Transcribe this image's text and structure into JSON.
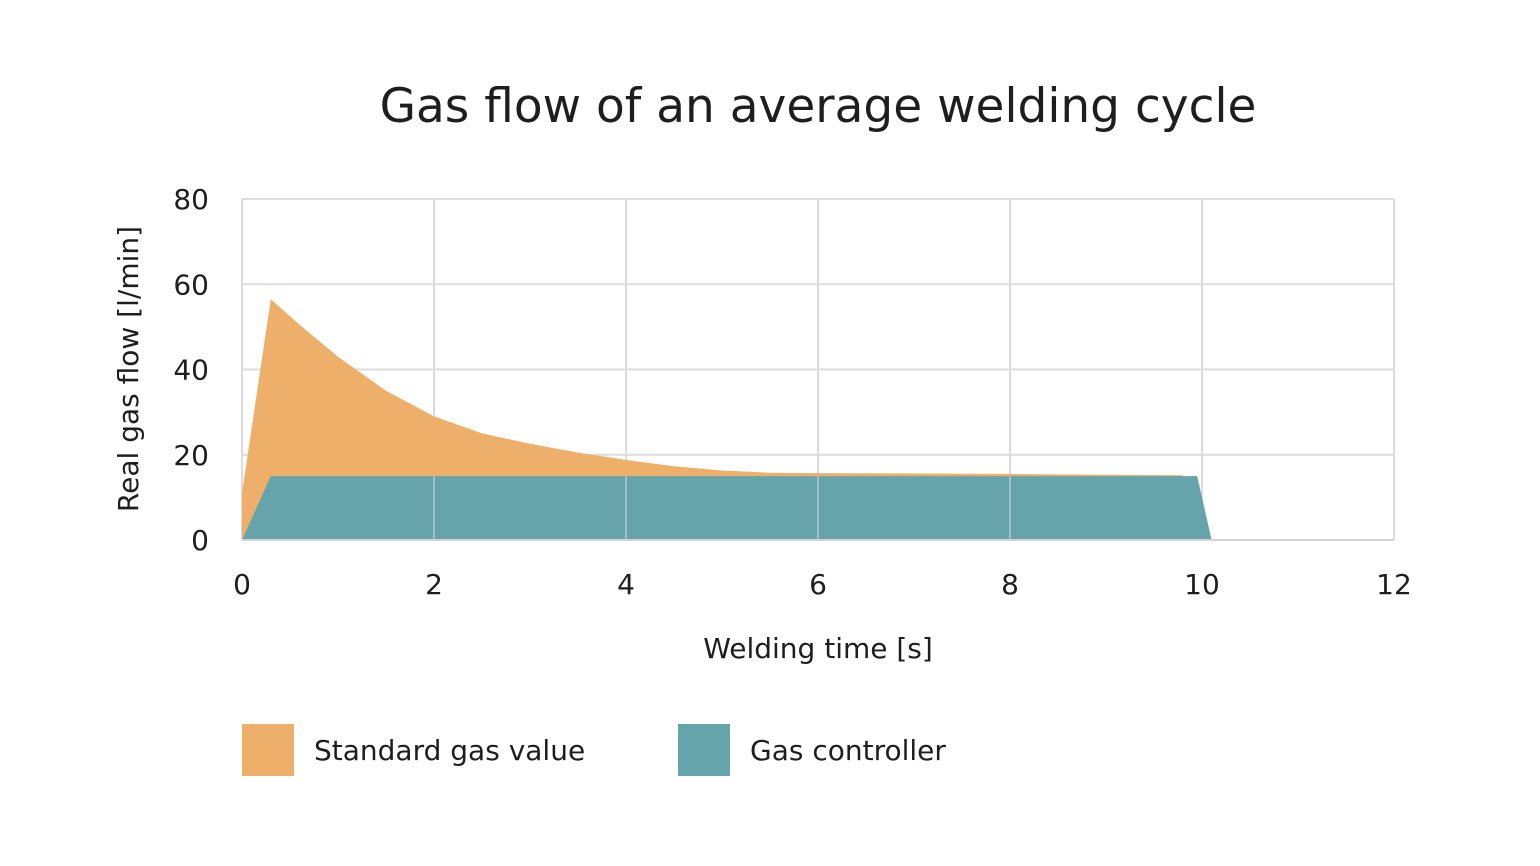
{
  "chart_data": {
    "type": "area",
    "title": "Gas flow of an average welding cycle",
    "xlabel": "Welding time [s]",
    "ylabel": "Real gas flow [l/min]",
    "xlim": [
      0,
      12
    ],
    "ylim": [
      0,
      80
    ],
    "x_ticks": [
      0,
      2,
      4,
      6,
      8,
      10,
      12
    ],
    "y_ticks": [
      0,
      20,
      40,
      60,
      80
    ],
    "grid": true,
    "legend_position": "bottom-left",
    "series": [
      {
        "name": "Standard gas value",
        "color": "#EDAF69",
        "points": [
          [
            0,
            0
          ],
          [
            0,
            11
          ],
          [
            0.3,
            56.5
          ],
          [
            0.6,
            50.5
          ],
          [
            1.0,
            43
          ],
          [
            1.5,
            35
          ],
          [
            2.0,
            29
          ],
          [
            2.5,
            25
          ],
          [
            3.0,
            22.6
          ],
          [
            3.5,
            20.5
          ],
          [
            4.0,
            18.8
          ],
          [
            4.5,
            17.3
          ],
          [
            5.0,
            16.3
          ],
          [
            5.5,
            15.8
          ],
          [
            6.0,
            15.7
          ],
          [
            7.0,
            15.6
          ],
          [
            8.0,
            15.5
          ],
          [
            9.0,
            15.3
          ],
          [
            9.8,
            15.2
          ],
          [
            9.8,
            0
          ]
        ]
      },
      {
        "name": "Gas controller",
        "color": "#66A4AC",
        "points": [
          [
            0,
            0
          ],
          [
            0.3,
            15
          ],
          [
            9.95,
            15
          ],
          [
            10.1,
            0
          ]
        ]
      }
    ]
  }
}
